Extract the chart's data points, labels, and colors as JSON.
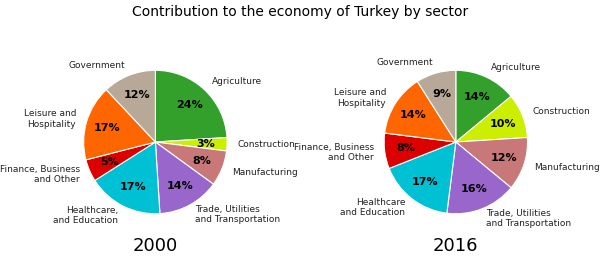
{
  "title": "Contribution to the economy of Turkey by sector",
  "chart2000": {
    "year": "2000",
    "labels": [
      "Agriculture",
      "Construction",
      "Manufacturing",
      "Trade, Utilities\nand Transportation",
      "Healthcare,\nand Education",
      "Finance, Business\nand Other",
      "Leisure and\nHospitality",
      "Government"
    ],
    "values": [
      24,
      3,
      8,
      14,
      17,
      5,
      17,
      12
    ],
    "colors": [
      "#33a02c",
      "#ccee00",
      "#c87878",
      "#9966cc",
      "#00c0d4",
      "#dd0000",
      "#ff6600",
      "#b8a898"
    ]
  },
  "chart2016": {
    "year": "2016",
    "labels": [
      "Agriculture",
      "Construction",
      "Manufacturing",
      "Trade, Utilities\nand Transportation",
      "Healthcare\nand Education",
      "Finance, Business\nand Other",
      "Leisure and\nHospitality",
      "Government"
    ],
    "values": [
      14,
      10,
      12,
      16,
      17,
      8,
      14,
      9
    ],
    "colors": [
      "#33a02c",
      "#ccee00",
      "#c87878",
      "#9966cc",
      "#00c0d4",
      "#dd0000",
      "#ff6600",
      "#b8a898"
    ]
  },
  "background_color": "#ffffff",
  "title_fontsize": 10,
  "label_fontsize": 6.5,
  "pct_fontsize": 8,
  "year_fontsize": 13
}
